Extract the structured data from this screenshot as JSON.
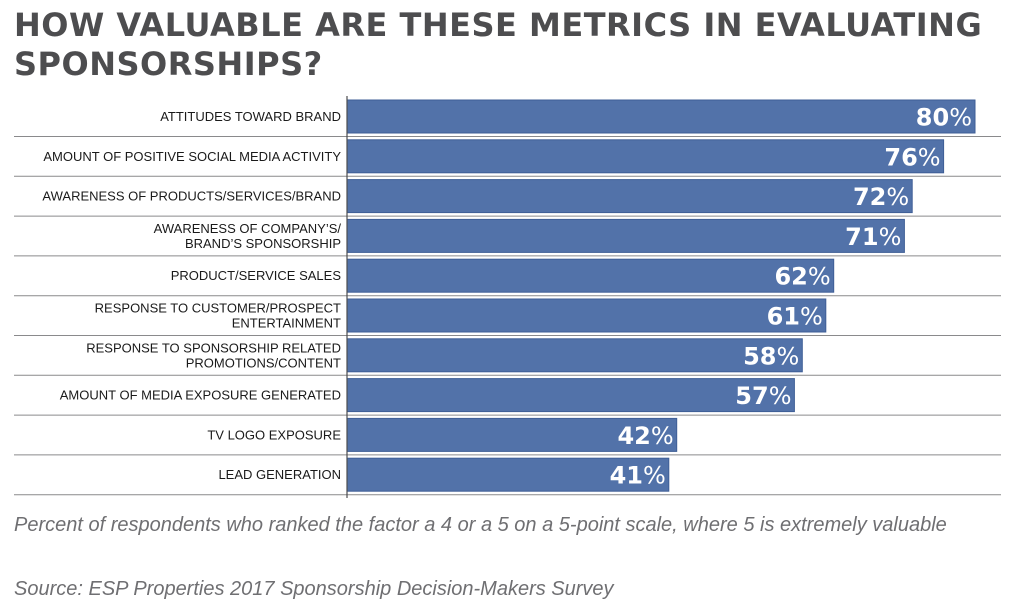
{
  "title": "HOW VALUABLE ARE THESE METRICS IN EVALUATING SPONSORSHIPS?",
  "colors": {
    "bar": "#5272a9",
    "bar_edge": "#3e5e96",
    "label": "#1a1a1a",
    "axis": "#4d4d4f",
    "value_text": "#ffffff"
  },
  "chart_data": {
    "type": "bar",
    "orientation": "horizontal",
    "title": "HOW VALUABLE ARE THESE METRICS IN EVALUATING SPONSORSHIPS?",
    "xlabel": "",
    "ylabel": "",
    "xlim": [
      0,
      80
    ],
    "grid": false,
    "categories": [
      [
        "ATTITUDES TOWARD BRAND"
      ],
      [
        "AMOUNT OF POSITIVE SOCIAL MEDIA ACTIVITY"
      ],
      [
        "AWARENESS OF PRODUCTS/SERVICES/BRAND"
      ],
      [
        "AWARENESS OF COMPANY’S/",
        "BRAND’S SPONSORSHIP"
      ],
      [
        "PRODUCT/SERVICE SALES"
      ],
      [
        "RESPONSE TO CUSTOMER/PROSPECT",
        "ENTERTAINMENT"
      ],
      [
        "RESPONSE TO SPONSORSHIP RELATED",
        "PROMOTIONS/CONTENT"
      ],
      [
        "AMOUNT OF MEDIA EXPOSURE GENERATED"
      ],
      [
        "TV LOGO EXPOSURE"
      ],
      [
        "LEAD GENERATION"
      ]
    ],
    "values": [
      80,
      76,
      72,
      71,
      62,
      61,
      58,
      57,
      42,
      41
    ],
    "value_suffix": "%"
  },
  "footnote": "Percent of respondents who ranked the factor a 4 or a 5 on a 5-point scale, where 5 is extremely valuable",
  "source": "Source: ESP Properties 2017 Sponsorship Decision-Makers Survey"
}
